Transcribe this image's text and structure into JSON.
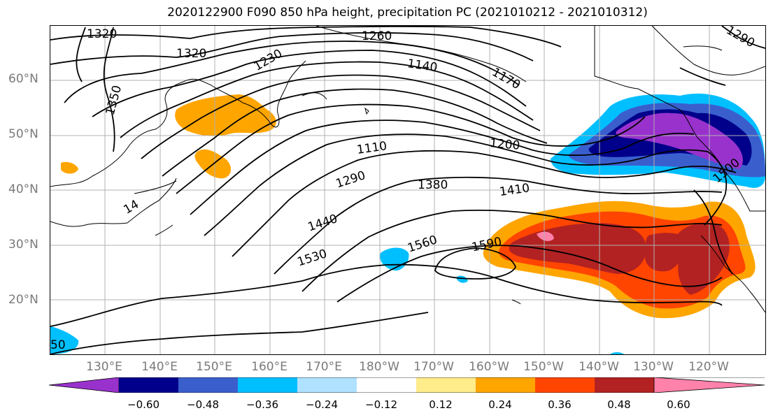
{
  "title": "2020122900 F090 850 hPa height, precipitation PC (2021010212 - 2021010312)",
  "latitude_labels": [
    "60°N",
    "50°N",
    "40°N",
    "30°N",
    "20°N"
  ],
  "longitude_labels": [
    "130°E",
    "140°E",
    "150°E",
    "160°E",
    "170°E",
    "180°W",
    "170°W",
    "160°W",
    "150°W",
    "140°W",
    "130°W",
    "120°W"
  ],
  "contour_labels": [
    "1320",
    "1320",
    "1260",
    "1230",
    "1140",
    "1170",
    "1350",
    "1110",
    "1200",
    "1290",
    "1380",
    "1410",
    "1440",
    "1560",
    "1590",
    "1530",
    "1500",
    "1290",
    "14",
    "50"
  ],
  "colorbar": {
    "tick_labels": [
      "−0.60",
      "−0.48",
      "−0.36",
      "−0.24",
      "−0.12",
      "0.12",
      "0.24",
      "0.36",
      "0.48",
      "0.60"
    ],
    "colors": [
      "#9932cc",
      "#00008b",
      "#3a5fcd",
      "#00bfff",
      "#b0e2ff",
      "#ffffff",
      "#ffec8b",
      "#ffa500",
      "#ff4500",
      "#b22222",
      "#ff82ab"
    ]
  },
  "colors": {
    "land_outline": "#000000",
    "grid": "#b0b0b0",
    "tick_label": "#7a7a7a"
  }
}
